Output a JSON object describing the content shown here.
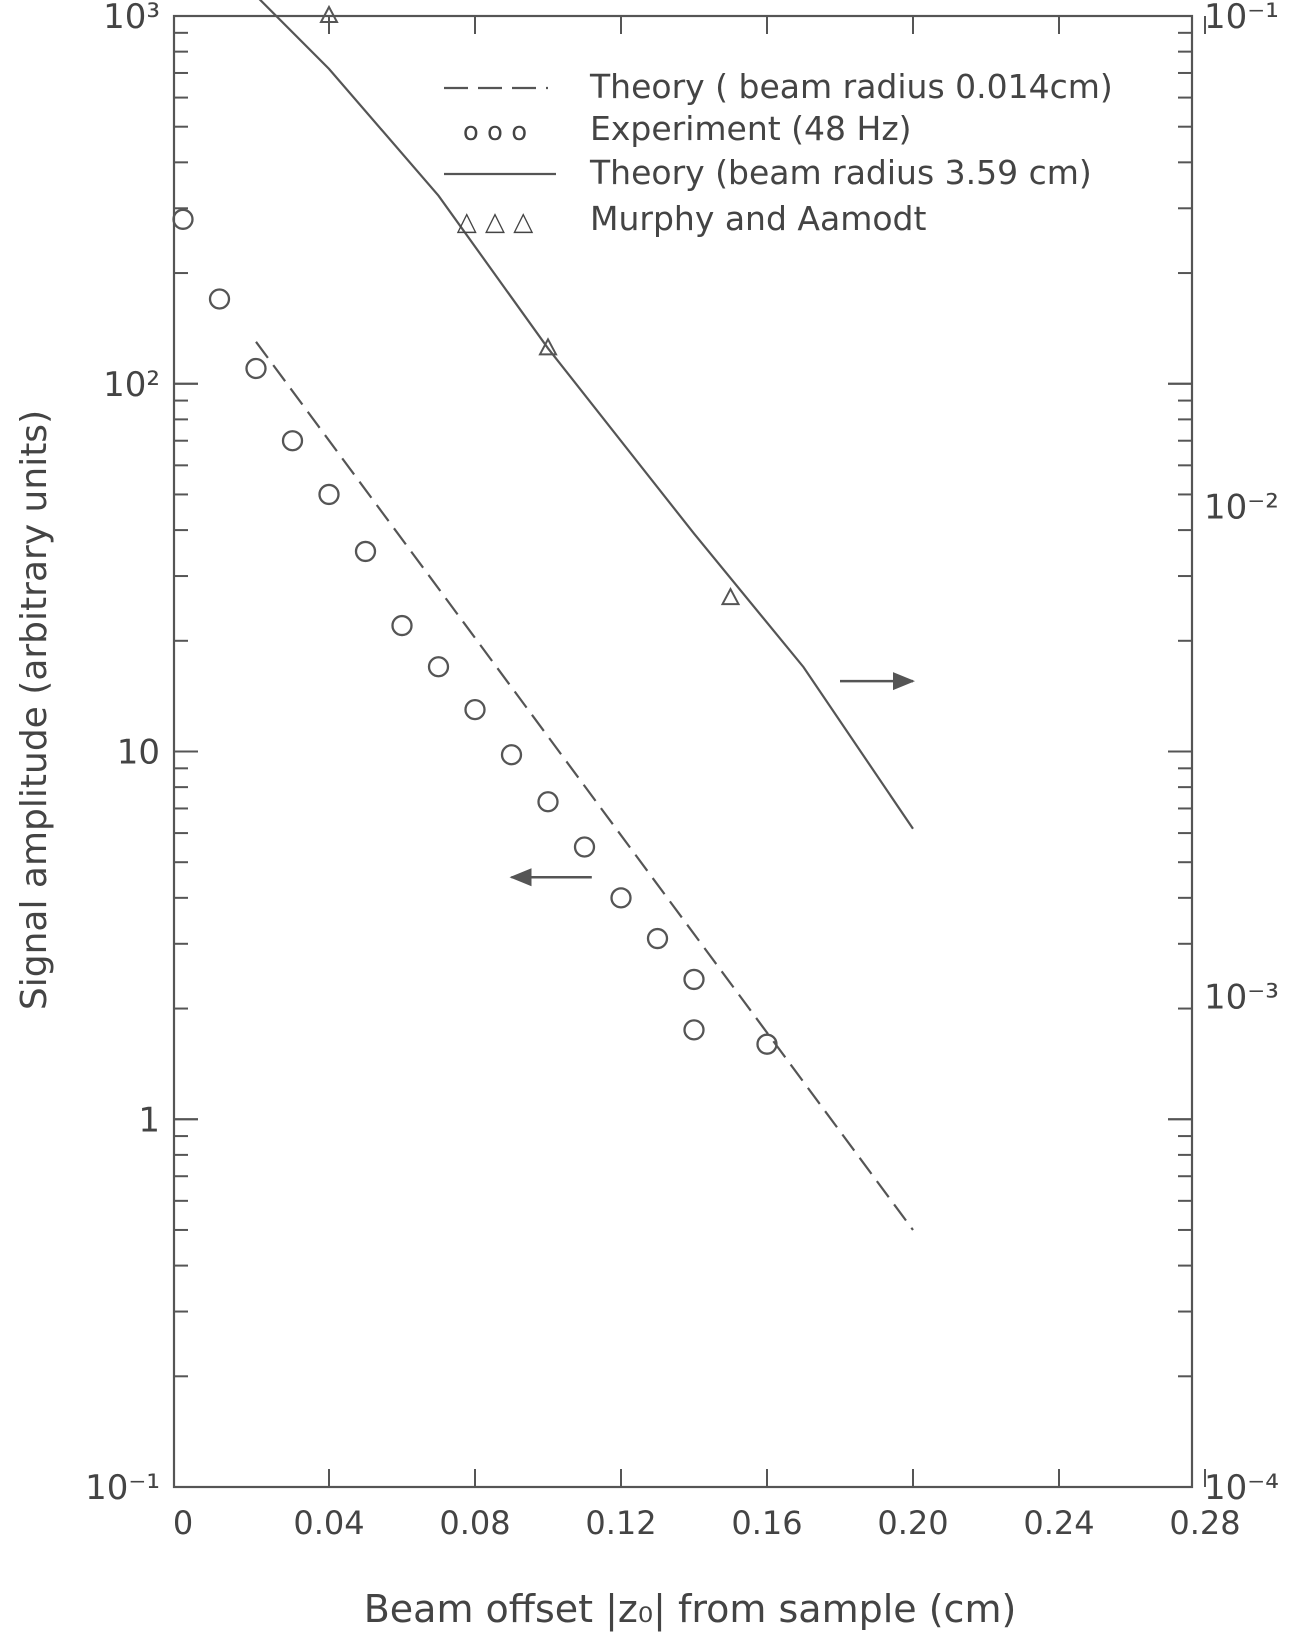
{
  "chart_data": {
    "type": "scatter",
    "xlabel": "Beam offset |z₀| from sample (cm)",
    "ylabel": "Signal amplitude (arbitrary units)",
    "x_ticks": [
      "0",
      "0.04",
      "0.08",
      "0.12",
      "0.16",
      "0.20",
      "0.24",
      "0.28"
    ],
    "x_tick_values": [
      0,
      0.04,
      0.08,
      0.12,
      0.16,
      0.2,
      0.24,
      0.28
    ],
    "xlim": [
      0,
      0.28
    ],
    "y_scale": "log",
    "ylim": [
      0.1,
      1000
    ],
    "y_ticks_left": [
      {
        "value": 1000,
        "label": "10³"
      },
      {
        "value": 100,
        "label": "10²"
      },
      {
        "value": 10,
        "label": "10"
      },
      {
        "value": 1,
        "label": "1"
      },
      {
        "value": 0.1,
        "label": "10⁻¹"
      }
    ],
    "y2_scale": "log",
    "y2lim": [
      0.0001,
      0.1
    ],
    "y_ticks_right": [
      {
        "value": 0.1,
        "label": "10⁻¹"
      },
      {
        "value": 0.01,
        "label": "10⁻²"
      },
      {
        "value": 0.001,
        "label": "10⁻³"
      },
      {
        "value": 0.0001,
        "label": "10⁻⁴"
      }
    ],
    "legend_position": "top-right",
    "legend": [
      {
        "symbol": "dashed-line",
        "symbol_text": "",
        "label": "Theory ( beam radius 0.014cm)"
      },
      {
        "symbol": "circles",
        "symbol_text": "o o o",
        "label": "Experiment (48 Hz)"
      },
      {
        "symbol": "solid-line",
        "symbol_text": "",
        "label": "Theory (beam radius 3.59 cm)"
      },
      {
        "symbol": "triangles",
        "symbol_text": "△ △ △",
        "label": "Murphy and Aamodt"
      }
    ],
    "series": [
      {
        "name": "Theory ( beam radius 0.014cm)",
        "kind": "dashed-line",
        "axis": "left",
        "points": [
          [
            0.02,
            130
          ],
          [
            0.2,
            0.5
          ]
        ]
      },
      {
        "name": "Experiment (48 Hz)",
        "kind": "circles",
        "axis": "left",
        "points": [
          [
            0.0,
            280
          ],
          [
            0.01,
            170
          ],
          [
            0.02,
            110
          ],
          [
            0.03,
            70
          ],
          [
            0.04,
            50
          ],
          [
            0.05,
            35
          ],
          [
            0.06,
            22
          ],
          [
            0.07,
            17
          ],
          [
            0.08,
            13
          ],
          [
            0.09,
            9.8
          ],
          [
            0.1,
            7.3
          ],
          [
            0.11,
            5.5
          ],
          [
            0.12,
            4.0
          ],
          [
            0.13,
            3.1
          ],
          [
            0.14,
            2.4
          ],
          [
            0.14,
            1.75
          ],
          [
            0.16,
            1.6
          ]
        ]
      },
      {
        "name": "Theory (beam radius 3.59 cm)",
        "kind": "solid-line",
        "axis": "right",
        "points": [
          [
            0.02,
            0.11
          ],
          [
            0.04,
            0.078
          ],
          [
            0.07,
            0.043
          ],
          [
            0.1,
            0.021
          ],
          [
            0.14,
            0.0088
          ],
          [
            0.17,
            0.0047
          ],
          [
            0.2,
            0.0022
          ]
        ]
      },
      {
        "name": "Murphy and Aamodt",
        "kind": "triangles",
        "axis": "right",
        "points": [
          [
            0.04,
            0.1
          ],
          [
            0.1,
            0.021
          ],
          [
            0.15,
            0.0065
          ]
        ]
      }
    ],
    "annotations": [
      {
        "type": "arrow",
        "direction": "left",
        "meaning": "left axis",
        "x": [
          0.112,
          0.09
        ],
        "y": 4.55
      },
      {
        "type": "arrow",
        "direction": "right",
        "meaning": "right axis",
        "x": [
          0.18,
          0.2
        ],
        "y": 0.0044
      }
    ],
    "grid": false
  }
}
